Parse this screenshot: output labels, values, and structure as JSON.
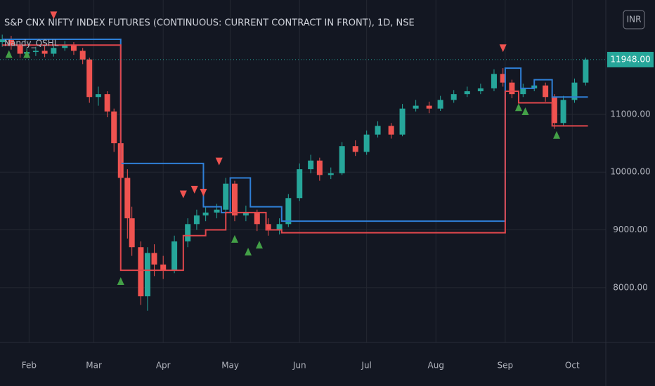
{
  "chart_data": {
    "type": "candlestick",
    "title": "S&P CNX NIFTY INDEX FUTURES (CONTINUOUS: CURRENT CONTRACT IN FRONT), 1D, NSE",
    "indicator": "Nandy_QSHL",
    "currency": "INR",
    "up_color": "#26a69a",
    "down_color": "#ef5350",
    "xlim": [
      19,
      290
    ],
    "xticks": [
      {
        "value": 32,
        "label": "Feb"
      },
      {
        "value": 61,
        "label": "Mar"
      },
      {
        "value": 92,
        "label": "Apr"
      },
      {
        "value": 122,
        "label": "May"
      },
      {
        "value": 153,
        "label": "Jun"
      },
      {
        "value": 183,
        "label": "Jul"
      },
      {
        "value": 214,
        "label": "Aug"
      },
      {
        "value": 245,
        "label": "Sep"
      },
      {
        "value": 275,
        "label": "Oct"
      }
    ],
    "ylim": [
      7050,
      12980
    ],
    "yticks": [
      {
        "value": 8000,
        "label": "8000.00"
      },
      {
        "value": 9000,
        "label": "9000.00"
      },
      {
        "value": 10000,
        "label": "10000.00"
      },
      {
        "value": 11000,
        "label": "11000.00"
      }
    ],
    "grid": true,
    "last_price": {
      "value": 11948,
      "label": "11948.00"
    },
    "candles": {
      "x": [
        20,
        24,
        28,
        31,
        35,
        39,
        43,
        48,
        52,
        56,
        59,
        63,
        67,
        70,
        73,
        76,
        78,
        82,
        85,
        88,
        92,
        97,
        103,
        107,
        111,
        116,
        120,
        124,
        129,
        134,
        139,
        144,
        148,
        153,
        158,
        162,
        167,
        172,
        178,
        183,
        188,
        194,
        199,
        205,
        211,
        216,
        222,
        228,
        234,
        240,
        244,
        248,
        253,
        258,
        263,
        267,
        271,
        276,
        281
      ],
      "open": [
        12250,
        12300,
        12200,
        12050,
        12080,
        12100,
        12050,
        12150,
        12200,
        12100,
        11950,
        11300,
        11350,
        11050,
        10500,
        9900,
        9200,
        8700,
        7850,
        8600,
        8400,
        8300,
        8800,
        9100,
        9250,
        9300,
        9350,
        9800,
        9250,
        9300,
        9100,
        9000,
        9100,
        9550,
        10050,
        10200,
        9950,
        9980,
        10450,
        10350,
        10650,
        10800,
        10650,
        11100,
        11150,
        11100,
        11250,
        11350,
        11400,
        11450,
        11700,
        11550,
        11350,
        11450,
        11500,
        11300,
        10850,
        11250,
        11550
      ],
      "high": [
        12380,
        12360,
        12260,
        12150,
        12170,
        12180,
        12210,
        12270,
        12250,
        12150,
        11980,
        11480,
        11400,
        11100,
        10600,
        10050,
        9400,
        8800,
        8700,
        8750,
        8550,
        8900,
        9200,
        9350,
        9400,
        9450,
        9900,
        9850,
        9420,
        9350,
        9200,
        9200,
        9620,
        10150,
        10300,
        10250,
        10080,
        10520,
        10550,
        10720,
        10880,
        10850,
        11180,
        11250,
        11220,
        11320,
        11420,
        11480,
        11530,
        11780,
        11800,
        11600,
        11530,
        11580,
        11550,
        11350,
        11320,
        11620,
        11980
      ],
      "low": [
        12170,
        12120,
        11980,
        11970,
        12010,
        11990,
        12000,
        12100,
        12030,
        11870,
        11200,
        11150,
        10950,
        10350,
        9750,
        8850,
        8550,
        7700,
        7600,
        8200,
        8150,
        8250,
        8700,
        9000,
        9150,
        9200,
        9300,
        9150,
        9150,
        8980,
        8900,
        8920,
        9050,
        9500,
        9980,
        9850,
        9880,
        9950,
        10280,
        10300,
        10600,
        10580,
        10620,
        11050,
        11020,
        11060,
        11200,
        11300,
        11350,
        11400,
        11480,
        11280,
        11300,
        11400,
        11220,
        10750,
        10800,
        11200,
        11500
      ],
      "close": [
        12300,
        12200,
        12050,
        12080,
        12100,
        12050,
        12150,
        12200,
        12100,
        11950,
        11300,
        11350,
        11050,
        10500,
        9900,
        9200,
        8700,
        7850,
        8600,
        8400,
        8300,
        8800,
        9100,
        9250,
        9300,
        9350,
        9800,
        9250,
        9300,
        9100,
        9000,
        9100,
        9550,
        10050,
        10200,
        9950,
        9980,
        10450,
        10350,
        10650,
        10800,
        10650,
        11100,
        11150,
        11100,
        11250,
        11350,
        11400,
        11450,
        11700,
        11550,
        11350,
        11450,
        11500,
        11300,
        10850,
        11250,
        11550,
        11948
      ]
    },
    "series": [
      {
        "color": "#2f7fd6",
        "x": [
          20,
          73,
          110,
          118,
          122,
          131,
          145,
          245,
          252,
          258,
          266,
          282
        ],
        "values": [
          12300,
          10150,
          9400,
          9300,
          9900,
          9400,
          9150,
          11800,
          11450,
          11600,
          11300,
          11300
        ]
      },
      {
        "color": "#e0474c",
        "x": [
          20,
          73,
          101,
          111,
          120,
          138,
          145,
          245,
          251,
          266,
          282
        ],
        "values": [
          12200,
          8300,
          8900,
          9000,
          9300,
          9000,
          8950,
          11400,
          11200,
          10800,
          10800
        ]
      }
    ],
    "sell_signals": {
      "color": "#ef5350",
      "x": [
        43,
        101,
        106,
        110,
        117,
        244
      ],
      "values": [
        12720,
        9620,
        9700,
        9650,
        10190,
        12150
      ]
    },
    "buy_signals": {
      "color": "#43a047",
      "x": [
        23,
        31,
        73,
        124,
        130,
        135,
        251,
        254,
        268
      ],
      "values": [
        12050,
        12050,
        8120,
        8850,
        8630,
        8750,
        11130,
        11060,
        10650
      ]
    }
  }
}
